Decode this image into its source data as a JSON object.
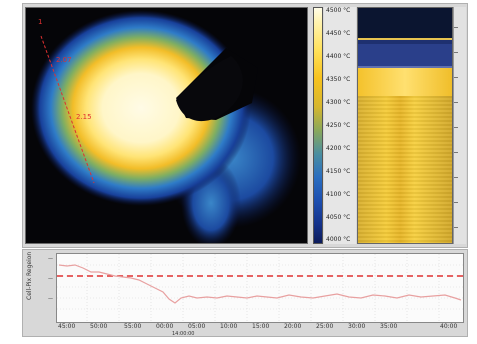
{
  "thermal_view": {
    "markers": [
      "1",
      "2.07",
      "2.15"
    ],
    "colors": {
      "marker": "#e03030",
      "hot": "#fffbe0",
      "warm": "#f5c23a",
      "cool": "#2a6ec0",
      "cold": "#0c1b5a"
    }
  },
  "color_scale": {
    "labels": [
      "4500 °C",
      "4450 °C",
      "4400 °C",
      "4350 °C",
      "4300 °C",
      "4250 °C",
      "4200 °C",
      "4150 °C",
      "4100 °C",
      "4050 °C",
      "4000 °C"
    ]
  },
  "trend_chart": {
    "ylabel": "Cell-Pix Regeion",
    "xlabel": "14:00:00",
    "x_ticks": [
      "45:00",
      "50:00",
      "55:00",
      "00:00",
      "05:00",
      "10:00",
      "15:00",
      "20:00",
      "25:00",
      "30:00",
      "35:00",
      "40:00"
    ],
    "threshold_color": "#e03030",
    "line_color": "#e8a0a0"
  }
}
